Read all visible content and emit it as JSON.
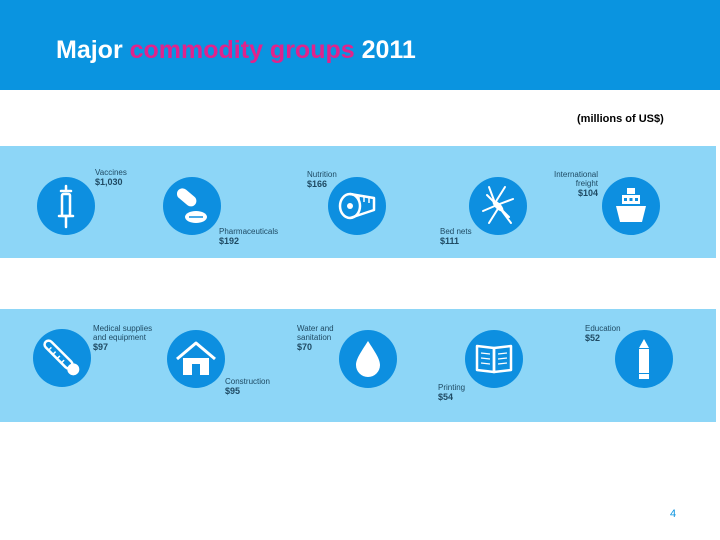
{
  "slide": {
    "title_prefix": "Major ",
    "title_highlight": "commodity groups",
    "title_suffix": " 2011",
    "units": "(millions of US$)",
    "page_number": "4"
  },
  "colors": {
    "header": "#0a94e0",
    "highlight": "#e0238c",
    "band": "#8dd6f7",
    "circle": "#0d8fe0"
  },
  "commodities": [
    {
      "label": "Vaccines",
      "amount": "$1,030",
      "icon": "syringe-icon"
    },
    {
      "label": "Pharmaceuticals",
      "amount": "$192",
      "icon": "pills-icon"
    },
    {
      "label": "Nutrition",
      "amount": "$166",
      "icon": "measuring-tape-icon"
    },
    {
      "label": "Bed nets",
      "amount": "$111",
      "icon": "mosquito-icon"
    },
    {
      "label_line1": "International",
      "label_line2": "freight",
      "amount": "$104",
      "icon": "ship-icon"
    },
    {
      "label_line1": "Medical supplies",
      "label_line2": "and equipment",
      "amount": "$97",
      "icon": "thermometer-icon"
    },
    {
      "label": "Construction",
      "amount": "$95",
      "icon": "house-icon"
    },
    {
      "label_line1": "Water and",
      "label_line2": "sanitation",
      "amount": "$70",
      "icon": "water-drop-icon"
    },
    {
      "label": "Printing",
      "amount": "$54",
      "icon": "book-icon"
    },
    {
      "label": "Education",
      "amount": "$52",
      "icon": "pencil-icon"
    }
  ]
}
